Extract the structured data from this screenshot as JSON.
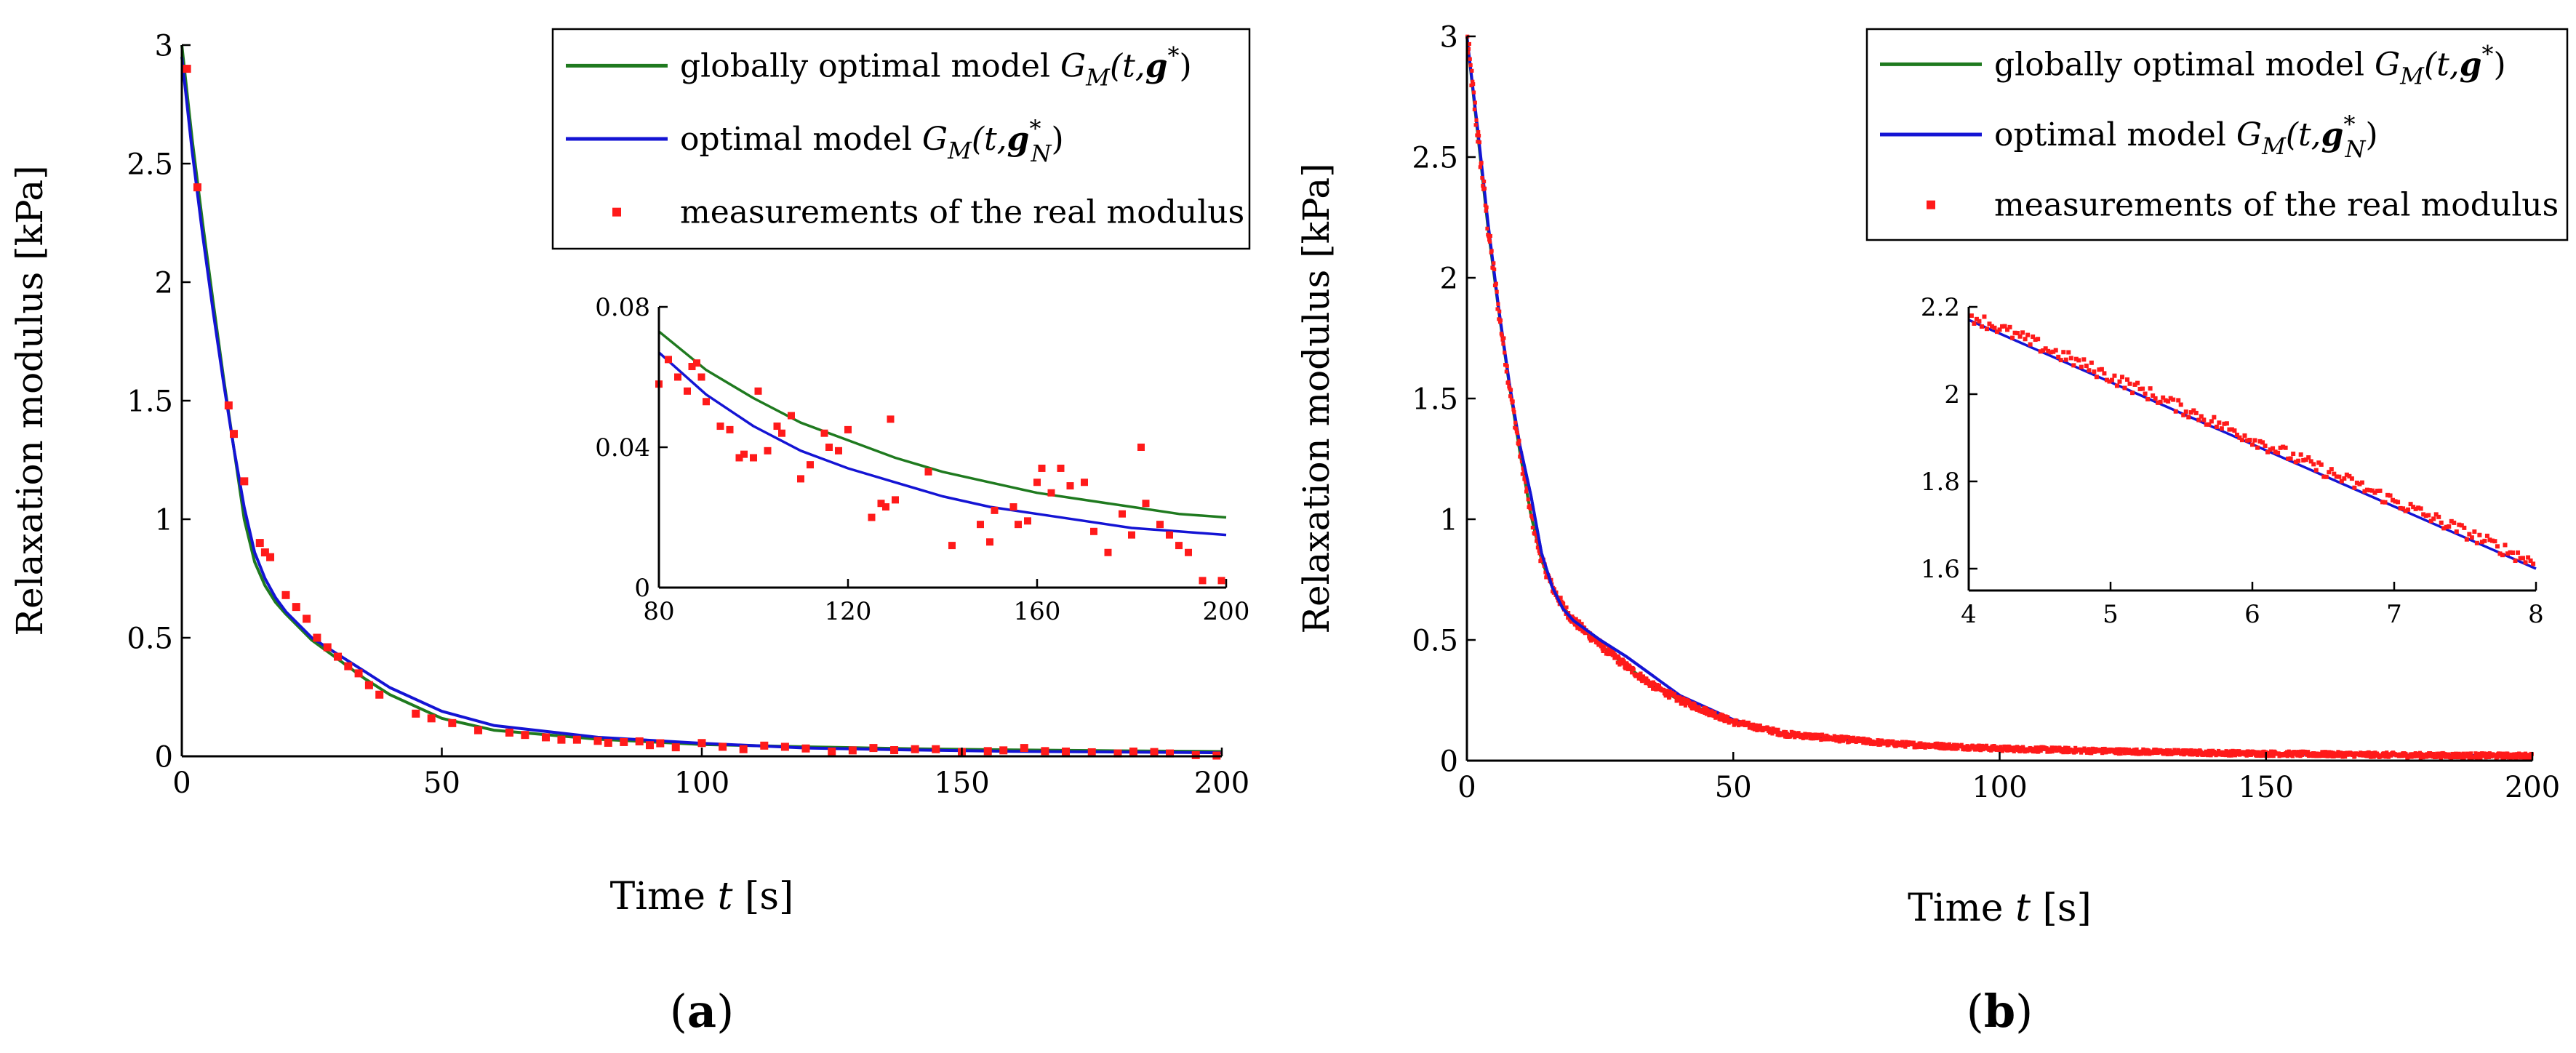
{
  "colors": {
    "global": "#1f7a1f",
    "optimal": "#1414d4",
    "measure": "#ff1a1a",
    "axis": "#000000"
  },
  "chart_data": [
    {
      "id": "a",
      "type": "line",
      "panel_label": "(a)",
      "panel_letter": "a",
      "xlabel": "Time",
      "xlabel_var": "t",
      "xlabel_unit": "[s]",
      "ylabel": "Relaxation modulus [kPa]",
      "xlim": [
        0,
        200
      ],
      "ylim": [
        0,
        3
      ],
      "xticks": [
        0,
        50,
        100,
        150,
        200
      ],
      "yticks": [
        0,
        0.5,
        1,
        1.5,
        2,
        2.5,
        3
      ],
      "ytick_labels": [
        "0",
        "0.5",
        "1",
        "1.5",
        "2",
        "2.5",
        "3"
      ],
      "legend": {
        "placement": "top-right",
        "entries": [
          {
            "key": "global",
            "text": "globally optimal model ",
            "math": "G",
            "sub": "M",
            "args": "(t,",
            "bold": "g",
            "sup": "*",
            "nsub": "",
            "close": ")"
          },
          {
            "key": "optimal",
            "text": "optimal model ",
            "math": "G",
            "sub": "M",
            "args": "(t,",
            "bold": "g",
            "sup": "*",
            "nsub": "N",
            "close": ")"
          },
          {
            "key": "measure",
            "text": "measurements of the real modulus"
          }
        ]
      },
      "series": [
        {
          "name": "globally optimal model G_M(t,g*)",
          "key": "global",
          "kind": "line",
          "x": [
            0,
            2,
            4,
            6,
            8,
            10,
            12,
            14,
            16,
            18,
            20,
            25,
            30,
            35,
            40,
            50,
            60,
            80,
            100,
            120,
            140,
            160,
            180,
            200
          ],
          "y": [
            3.0,
            2.6,
            2.25,
            1.92,
            1.6,
            1.3,
            1.0,
            0.82,
            0.72,
            0.65,
            0.6,
            0.49,
            0.41,
            0.33,
            0.26,
            0.16,
            0.11,
            0.072,
            0.05,
            0.04,
            0.032,
            0.027,
            0.023,
            0.02
          ]
        },
        {
          "name": "optimal model G_M(t,g*_N)",
          "key": "optimal",
          "kind": "line",
          "x": [
            0,
            2,
            4,
            6,
            8,
            10,
            12,
            14,
            16,
            18,
            20,
            25,
            30,
            35,
            40,
            50,
            60,
            80,
            100,
            120,
            140,
            160,
            180,
            200
          ],
          "y": [
            2.95,
            2.55,
            2.2,
            1.88,
            1.58,
            1.3,
            1.05,
            0.86,
            0.75,
            0.67,
            0.61,
            0.5,
            0.43,
            0.36,
            0.29,
            0.19,
            0.13,
            0.08,
            0.055,
            0.035,
            0.027,
            0.021,
            0.018,
            0.015
          ]
        },
        {
          "name": "measurements of the real modulus",
          "key": "measure",
          "kind": "scatter",
          "x": [
            1,
            3,
            9,
            10,
            12,
            15,
            16,
            17,
            20,
            22,
            24,
            26,
            28,
            30,
            32,
            34,
            36,
            38,
            45,
            48,
            52,
            57,
            63,
            66,
            70,
            73,
            76,
            80,
            82,
            85,
            88,
            90,
            92,
            95,
            100,
            104,
            108,
            112,
            116,
            120,
            125,
            129,
            133,
            137,
            141,
            145,
            150,
            155,
            158,
            162,
            166,
            170,
            175,
            180,
            183,
            187,
            190,
            195,
            199
          ],
          "y": [
            2.9,
            2.4,
            1.48,
            1.36,
            1.16,
            0.9,
            0.86,
            0.84,
            0.68,
            0.63,
            0.58,
            0.5,
            0.46,
            0.42,
            0.38,
            0.35,
            0.3,
            0.26,
            0.18,
            0.16,
            0.14,
            0.11,
            0.1,
            0.09,
            0.08,
            0.07,
            0.07,
            0.065,
            0.057,
            0.06,
            0.063,
            0.047,
            0.055,
            0.038,
            0.056,
            0.04,
            0.03,
            0.045,
            0.04,
            0.033,
            0.02,
            0.025,
            0.035,
            0.026,
            0.03,
            0.03,
            0.018,
            0.022,
            0.025,
            0.035,
            0.022,
            0.02,
            0.017,
            0.012,
            0.02,
            0.018,
            0.012,
            0.005,
            0.003
          ]
        }
      ],
      "inset": {
        "xlim": [
          80,
          200
        ],
        "ylim": [
          0,
          0.08
        ],
        "xticks": [
          80,
          120,
          160,
          200
        ],
        "yticks": [
          0,
          0.04,
          0.08
        ],
        "ytick_labels": [
          "0",
          "0.04",
          "0.08"
        ],
        "series": [
          {
            "key": "global",
            "kind": "line",
            "x": [
              80,
              90,
              100,
              110,
              120,
              130,
              140,
              150,
              160,
              170,
              180,
              190,
              200
            ],
            "y": [
              0.073,
              0.062,
              0.054,
              0.047,
              0.042,
              0.037,
              0.033,
              0.03,
              0.027,
              0.025,
              0.023,
              0.021,
              0.02
            ]
          },
          {
            "key": "optimal",
            "kind": "line",
            "x": [
              80,
              90,
              100,
              110,
              120,
              130,
              140,
              150,
              160,
              170,
              180,
              190,
              200
            ],
            "y": [
              0.067,
              0.055,
              0.046,
              0.039,
              0.034,
              0.03,
              0.026,
              0.023,
              0.021,
              0.019,
              0.017,
              0.016,
              0.015
            ]
          },
          {
            "key": "measure",
            "kind": "scatter",
            "x": [
              80,
              82,
              84,
              86,
              87,
              88,
              89,
              90,
              93,
              95,
              97,
              98,
              100,
              101,
              103,
              105,
              106,
              108,
              110,
              112,
              115,
              116,
              118,
              120,
              125,
              127,
              128,
              129,
              130,
              137,
              142,
              148,
              150,
              151,
              155,
              156,
              158,
              160,
              161,
              163,
              165,
              167,
              170,
              172,
              175,
              178,
              180,
              182,
              183,
              186,
              188,
              190,
              192,
              195,
              199
            ],
            "y": [
              0.058,
              0.065,
              0.06,
              0.056,
              0.063,
              0.064,
              0.06,
              0.053,
              0.046,
              0.045,
              0.037,
              0.038,
              0.037,
              0.056,
              0.039,
              0.046,
              0.044,
              0.049,
              0.031,
              0.035,
              0.044,
              0.04,
              0.039,
              0.045,
              0.02,
              0.024,
              0.023,
              0.048,
              0.025,
              0.033,
              0.012,
              0.018,
              0.013,
              0.022,
              0.023,
              0.018,
              0.019,
              0.03,
              0.034,
              0.027,
              0.034,
              0.029,
              0.03,
              0.016,
              0.01,
              0.021,
              0.015,
              0.04,
              0.024,
              0.018,
              0.015,
              0.012,
              0.01,
              0.002,
              0.002
            ]
          }
        ]
      }
    },
    {
      "id": "b",
      "type": "line",
      "panel_label": "(b)",
      "panel_letter": "b",
      "xlabel": "Time",
      "xlabel_var": "t",
      "xlabel_unit": "[s]",
      "ylabel": "Relaxation modulus [kPa]",
      "xlim": [
        0,
        200
      ],
      "ylim": [
        0,
        3
      ],
      "xticks": [
        0,
        50,
        100,
        150,
        200
      ],
      "yticks": [
        0,
        0.5,
        1,
        1.5,
        2,
        2.5,
        3
      ],
      "ytick_labels": [
        "0",
        "0.5",
        "1",
        "1.5",
        "2",
        "2.5",
        "3"
      ],
      "legend": {
        "placement": "top-right",
        "entries": [
          {
            "key": "global",
            "text": "globally optimal model ",
            "math": "G",
            "sub": "M",
            "args": "(t,",
            "bold": "g",
            "sup": "*",
            "nsub": "",
            "close": ")"
          },
          {
            "key": "optimal",
            "text": "optimal model ",
            "math": "G",
            "sub": "M",
            "args": "(t,",
            "bold": "g",
            "sup": "*",
            "nsub": "N",
            "close": ")"
          },
          {
            "key": "measure",
            "text": "measurements of the real modulus"
          }
        ]
      },
      "series": [
        {
          "name": "globally optimal model G_M(t,g*)",
          "key": "global",
          "kind": "line",
          "x": [
            0,
            2,
            4,
            6,
            8,
            10,
            12,
            14,
            16,
            18,
            20,
            25,
            30,
            35,
            40,
            50,
            60,
            80,
            100,
            120,
            140,
            160,
            180,
            200
          ],
          "y": [
            3.0,
            2.6,
            2.2,
            1.86,
            1.55,
            1.27,
            1.02,
            0.83,
            0.72,
            0.64,
            0.58,
            0.48,
            0.39,
            0.31,
            0.25,
            0.16,
            0.11,
            0.07,
            0.05,
            0.04,
            0.032,
            0.027,
            0.022,
            0.02
          ]
        },
        {
          "name": "optimal model G_M(t,g*_N)",
          "key": "optimal",
          "kind": "line",
          "x": [
            0,
            2,
            4,
            6,
            8,
            10,
            12,
            14,
            16,
            18,
            20,
            25,
            30,
            35,
            40,
            50,
            60,
            80,
            100,
            120,
            140,
            160,
            180,
            200
          ],
          "y": [
            3.0,
            2.62,
            2.22,
            1.87,
            1.56,
            1.3,
            1.1,
            0.86,
            0.72,
            0.63,
            0.58,
            0.5,
            0.43,
            0.35,
            0.27,
            0.17,
            0.11,
            0.07,
            0.05,
            0.04,
            0.032,
            0.026,
            0.022,
            0.02
          ]
        },
        {
          "name": "measurements of the real modulus",
          "key": "measure",
          "kind": "dense"
        }
      ],
      "inset": {
        "xlim": [
          4,
          8
        ],
        "ylim": [
          1.55,
          2.2
        ],
        "xticks": [
          4,
          5,
          6,
          7,
          8
        ],
        "yticks": [
          1.6,
          1.8,
          2,
          2.2
        ],
        "ytick_labels": [
          "1.6",
          "1.8",
          "2",
          "2.2"
        ],
        "series": [
          {
            "key": "optimal",
            "kind": "line",
            "x": [
              4,
              8
            ],
            "y": [
              2.17,
              1.6
            ]
          },
          {
            "key": "measure",
            "kind": "dense_inset"
          }
        ]
      }
    }
  ]
}
